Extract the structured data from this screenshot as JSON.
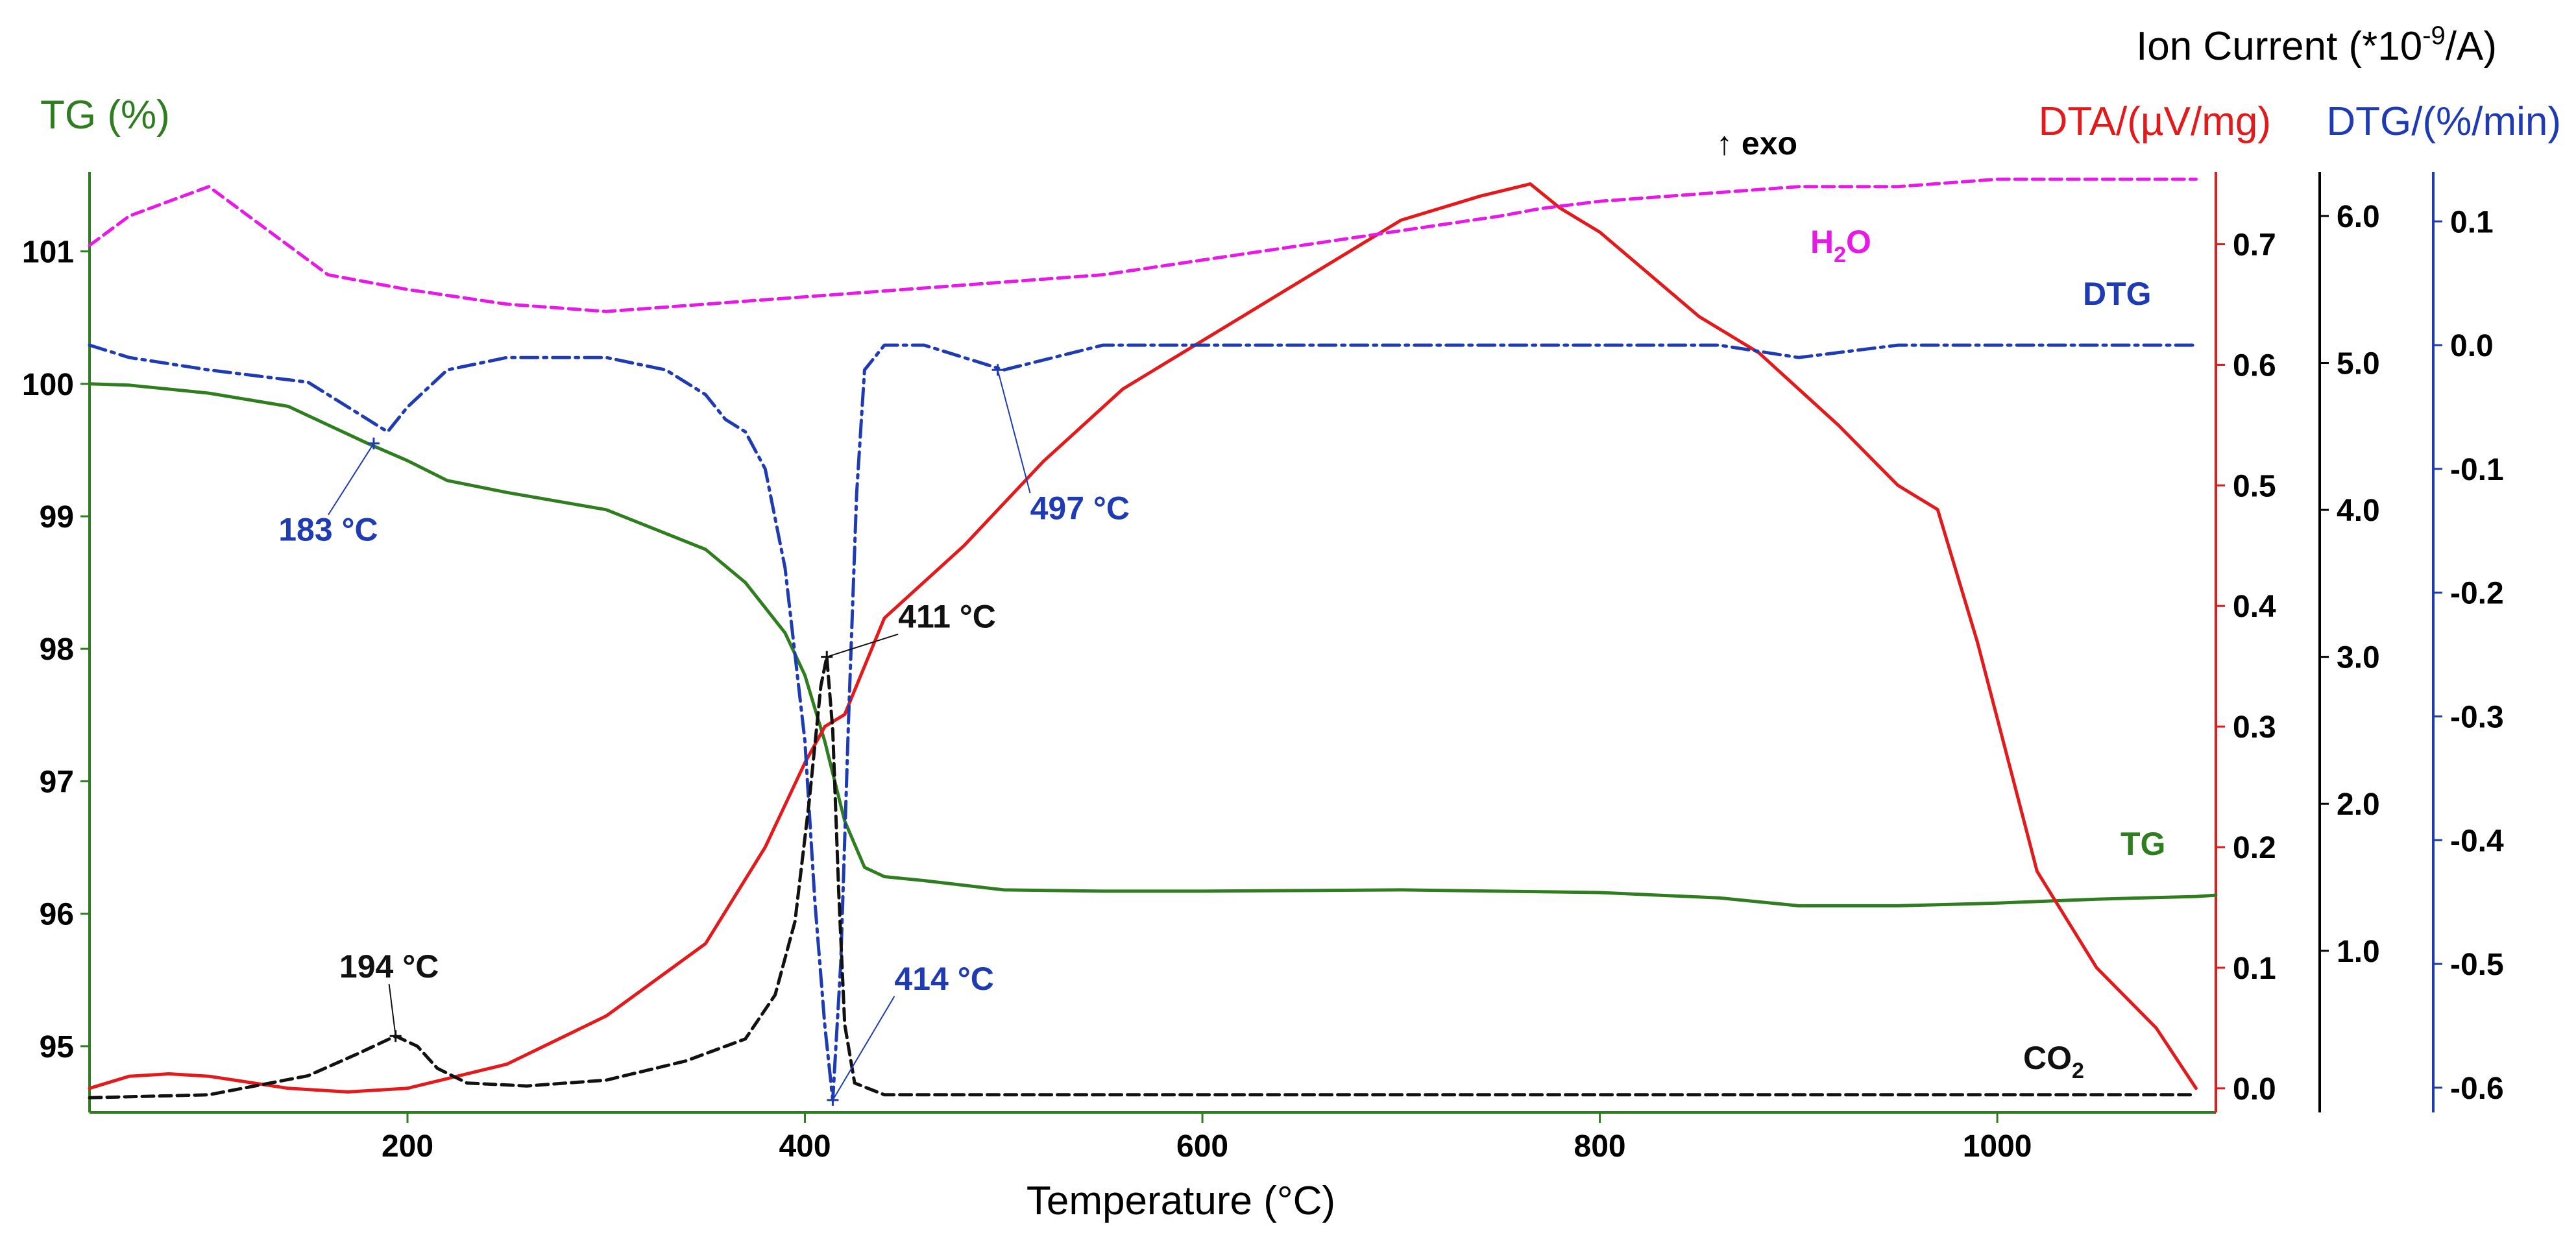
{
  "chart_data": {
    "type": "line",
    "x": {
      "label": "Temperature (°C)",
      "range": [
        40,
        1110
      ],
      "ticks": [
        200,
        400,
        600,
        800,
        1000
      ]
    },
    "axes": {
      "tg": {
        "title": "TG (%)",
        "color": "#2e7d1e",
        "side": "left",
        "range": [
          94.5,
          101.6
        ],
        "ticks": [
          95,
          96,
          97,
          98,
          99,
          100,
          101
        ]
      },
      "dta": {
        "title": "DTA/(µV/mg)",
        "color": "#e31a1c",
        "side": "right",
        "range": [
          -0.02,
          0.76
        ],
        "ticks": [
          "0.0",
          "0.1",
          "0.2",
          "0.3",
          "0.4",
          "0.5",
          "0.6",
          "0.7"
        ]
      },
      "ion": {
        "title_prefix": "Ion Current (*10",
        "title_exp": "-9",
        "title_suffix": "/A)",
        "color": "#000000",
        "side": "right",
        "range": [
          -0.1,
          6.3
        ],
        "ticks": [
          "1.0",
          "2.0",
          "3.0",
          "4.0",
          "5.0",
          "6.0"
        ]
      },
      "dtg": {
        "title": "DTG/(%/min)",
        "color": "#1f3bb3",
        "side": "right",
        "range": [
          -0.62,
          0.14
        ],
        "ticks": [
          "0.1",
          "0.0",
          "-0.1",
          "-0.2",
          "-0.3",
          "-0.4",
          "-0.5",
          "-0.6"
        ]
      }
    },
    "exo_label": "↑ exo",
    "series": [
      {
        "name": "TG",
        "axis": "tg",
        "color": "#2e7d1e",
        "style": "solid",
        "x": [
          40,
          60,
          100,
          140,
          180,
          200,
          220,
          250,
          300,
          350,
          370,
          390,
          400,
          410,
          420,
          430,
          440,
          460,
          500,
          550,
          600,
          700,
          800,
          860,
          900,
          950,
          1000,
          1050,
          1100,
          1110
        ],
        "y": [
          100.0,
          99.99,
          99.93,
          99.83,
          99.55,
          99.42,
          99.27,
          99.18,
          99.05,
          98.75,
          98.5,
          98.12,
          97.8,
          97.3,
          96.7,
          96.35,
          96.28,
          96.25,
          96.18,
          96.17,
          96.17,
          96.18,
          96.16,
          96.12,
          96.06,
          96.06,
          96.08,
          96.11,
          96.13,
          96.14
        ]
      },
      {
        "name": "DTA",
        "axis": "dta",
        "color": "#e31a1c",
        "style": "solid",
        "x": [
          40,
          60,
          80,
          100,
          140,
          170,
          200,
          250,
          300,
          350,
          380,
          400,
          410,
          420,
          440,
          480,
          520,
          560,
          600,
          650,
          700,
          740,
          765,
          780,
          800,
          850,
          880,
          920,
          950,
          970,
          990,
          1020,
          1050,
          1080,
          1100
        ],
        "y": [
          0.0,
          0.01,
          0.012,
          0.01,
          0.0,
          -0.003,
          0.0,
          0.02,
          0.06,
          0.12,
          0.2,
          0.27,
          0.3,
          0.31,
          0.39,
          0.45,
          0.52,
          0.58,
          0.62,
          0.67,
          0.72,
          0.74,
          0.75,
          0.73,
          0.71,
          0.64,
          0.61,
          0.55,
          0.5,
          0.48,
          0.37,
          0.18,
          0.1,
          0.05,
          0.0
        ]
      },
      {
        "name": "H2O",
        "axis": "ion",
        "color": "#e619e6",
        "style": "dashed",
        "x": [
          40,
          60,
          80,
          100,
          120,
          140,
          160,
          200,
          250,
          300,
          350,
          400,
          450,
          500,
          550,
          600,
          650,
          700,
          750,
          770,
          800,
          850,
          900,
          950,
          1000,
          1050,
          1100
        ],
        "y": [
          5.8,
          6.0,
          6.1,
          6.2,
          6.0,
          5.8,
          5.6,
          5.5,
          5.4,
          5.35,
          5.4,
          5.45,
          5.5,
          5.55,
          5.6,
          5.7,
          5.8,
          5.9,
          6.0,
          6.05,
          6.1,
          6.15,
          6.2,
          6.2,
          6.25,
          6.25,
          6.25
        ]
      },
      {
        "name": "DTG",
        "axis": "dtg",
        "color": "#1f3bb3",
        "style": "dashdot",
        "x": [
          40,
          60,
          100,
          150,
          180,
          190,
          200,
          220,
          250,
          300,
          330,
          350,
          360,
          370,
          380,
          390,
          400,
          405,
          410,
          414,
          418,
          422,
          426,
          430,
          440,
          460,
          500,
          550,
          600,
          700,
          800,
          860,
          900,
          950,
          1000,
          1050,
          1100
        ],
        "y": [
          0.0,
          -0.01,
          -0.02,
          -0.03,
          -0.06,
          -0.07,
          -0.05,
          -0.02,
          -0.01,
          -0.01,
          -0.02,
          -0.04,
          -0.06,
          -0.07,
          -0.1,
          -0.18,
          -0.32,
          -0.45,
          -0.55,
          -0.61,
          -0.5,
          -0.3,
          -0.12,
          -0.02,
          0.0,
          0.0,
          -0.02,
          0.0,
          0.0,
          0.0,
          0.0,
          0.0,
          -0.01,
          0.0,
          0.0,
          0.0,
          0.0
        ]
      },
      {
        "name": "CO2",
        "axis": "ion",
        "color": "#111111",
        "style": "dashed",
        "x": [
          40,
          100,
          150,
          175,
          194,
          205,
          215,
          230,
          260,
          300,
          340,
          370,
          385,
          395,
          402,
          408,
          411,
          414,
          417,
          420,
          425,
          440,
          500,
          600,
          800,
          1000,
          1100
        ],
        "y": [
          0.0,
          0.02,
          0.15,
          0.3,
          0.42,
          0.35,
          0.2,
          0.1,
          0.08,
          0.12,
          0.25,
          0.4,
          0.7,
          1.2,
          2.0,
          2.8,
          3.0,
          2.5,
          1.4,
          0.5,
          0.1,
          0.02,
          0.02,
          0.02,
          0.02,
          0.02,
          0.02
        ]
      }
    ],
    "series_labels": [
      {
        "text": "TG",
        "color": "#2e7d1e"
      },
      {
        "text_main": "H",
        "text_sub": "2",
        "text_after": "O",
        "color": "#e619e6"
      },
      {
        "text": "DTG",
        "color": "#1f3bb3"
      },
      {
        "text_main": "CO",
        "text_sub": "2",
        "text_after": "",
        "color": "#111111"
      }
    ],
    "annotations": [
      {
        "label": "183 °C",
        "x": 183,
        "color": "#1f3bb3",
        "axis": "tg",
        "y": 99.55
      },
      {
        "label": "497 °C",
        "x": 497,
        "color": "#1f3bb3",
        "axis": "dtg",
        "y": -0.02
      },
      {
        "label": "411 °C",
        "x": 411,
        "color": "#111111",
        "axis": "ion",
        "y": 3.0
      },
      {
        "label": "194 °C",
        "x": 194,
        "color": "#111111",
        "axis": "ion",
        "y": 0.42
      },
      {
        "label": "414 °C",
        "x": 414,
        "color": "#1f3bb3",
        "axis": "dtg",
        "y": -0.61
      }
    ]
  }
}
